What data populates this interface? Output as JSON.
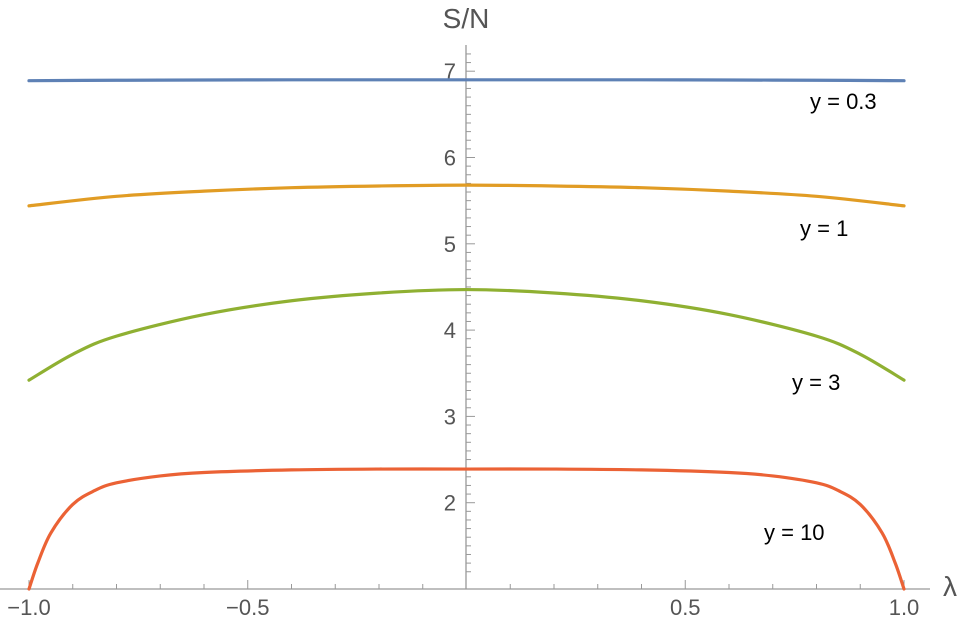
{
  "chart_data": {
    "type": "line",
    "title": "",
    "xlabel": "λ",
    "ylabel": "S/N",
    "xlim": [
      -1.0,
      1.0
    ],
    "ylim": [
      1.0,
      7.3
    ],
    "x_tick_labels": [
      "-1.0",
      "-0.5",
      "0.5",
      "1.0"
    ],
    "y_tick_labels": [
      "2",
      "3",
      "4",
      "5",
      "6",
      "7"
    ],
    "x_tick_values": [
      -1.0,
      -0.5,
      0.5,
      1.0
    ],
    "y_tick_values": [
      2,
      3,
      4,
      5,
      6,
      7
    ],
    "grid": false,
    "legend": "none",
    "series": [
      {
        "name": "y = 0.3",
        "color": "#5E81B5",
        "x": [
          -1.0,
          -0.8,
          -0.6,
          -0.4,
          -0.2,
          0.0,
          0.2,
          0.4,
          0.6,
          0.8,
          1.0
        ],
        "y": [
          6.89,
          6.895,
          6.898,
          6.9,
          6.9,
          6.9,
          6.9,
          6.9,
          6.898,
          6.895,
          6.89
        ]
      },
      {
        "name": "y = 1",
        "color": "#E19C24",
        "x": [
          -1.0,
          -0.8,
          -0.6,
          -0.4,
          -0.2,
          0.0,
          0.2,
          0.4,
          0.6,
          0.8,
          1.0
        ],
        "y": [
          5.44,
          5.55,
          5.61,
          5.65,
          5.67,
          5.68,
          5.67,
          5.65,
          5.61,
          5.55,
          5.44
        ]
      },
      {
        "name": "y = 3",
        "color": "#8FB032",
        "x": [
          -1.0,
          -0.9,
          -0.8,
          -0.6,
          -0.4,
          -0.2,
          0.0,
          0.2,
          0.4,
          0.6,
          0.8,
          0.9,
          1.0
        ],
        "y": [
          3.42,
          3.72,
          3.93,
          4.18,
          4.34,
          4.43,
          4.47,
          4.43,
          4.34,
          4.18,
          3.93,
          3.72,
          3.42
        ]
      },
      {
        "name": "y = 10",
        "color": "#EB6235",
        "x": [
          -1.0,
          -0.98,
          -0.95,
          -0.9,
          -0.85,
          -0.8,
          -0.7,
          -0.6,
          -0.4,
          -0.2,
          0.0,
          0.2,
          0.4,
          0.6,
          0.7,
          0.8,
          0.85,
          0.9,
          0.95,
          0.98,
          1.0
        ],
        "y": [
          1.0,
          1.3,
          1.65,
          1.98,
          2.14,
          2.23,
          2.31,
          2.35,
          2.38,
          2.39,
          2.39,
          2.39,
          2.38,
          2.35,
          2.31,
          2.23,
          2.14,
          1.98,
          1.65,
          1.3,
          1.0
        ]
      }
    ]
  }
}
